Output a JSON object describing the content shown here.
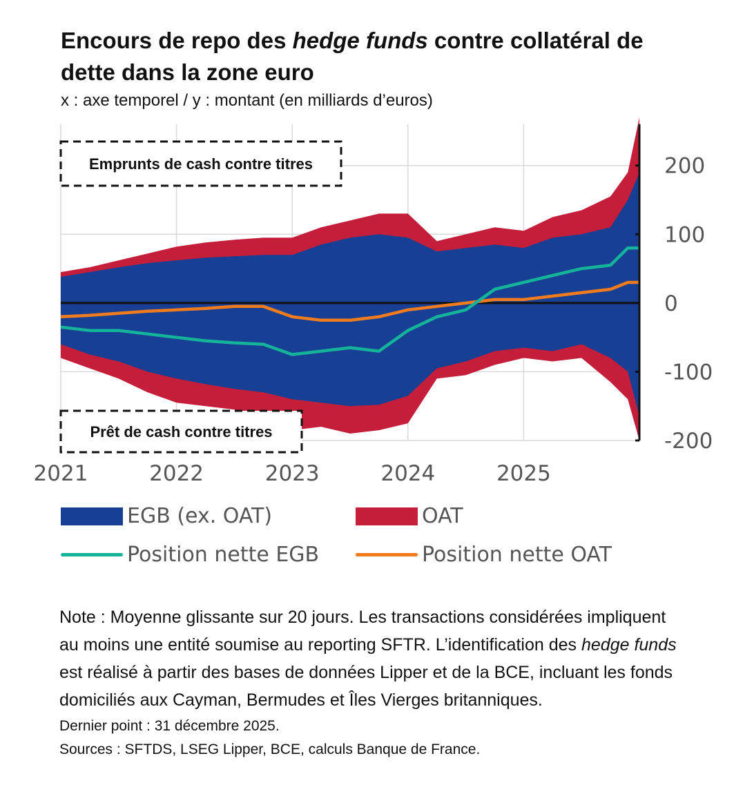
{
  "title": {
    "part1": "Encours de repo des ",
    "italic": "hedge funds",
    "part2": " contre collatéral de dette dans la zone euro"
  },
  "subtitle": "x : axe temporel / y : montant (en milliards d’euros)",
  "chart_data": {
    "type": "area",
    "x": [
      2021.0,
      2021.25,
      2021.5,
      2021.75,
      2022.0,
      2022.25,
      2022.5,
      2022.75,
      2023.0,
      2023.25,
      2023.5,
      2023.75,
      2024.0,
      2024.25,
      2024.5,
      2024.75,
      2025.0,
      2025.25,
      2025.5,
      2025.75,
      2025.9,
      2026.0
    ],
    "ylim": [
      -200,
      260
    ],
    "yticks": [
      -200,
      -100,
      0,
      100,
      200
    ],
    "ytick_labels": [
      "-200",
      "-100",
      "0",
      "100",
      "200"
    ],
    "xticks": [
      2021,
      2022,
      2023,
      2024,
      2025
    ],
    "xtick_labels": [
      "2021",
      "2022",
      "2023",
      "2024",
      "2025"
    ],
    "series": [
      {
        "name": "EGB (ex. OAT)",
        "kind": "area",
        "color": "#173f94",
        "upper": [
          38,
          45,
          52,
          58,
          62,
          66,
          68,
          70,
          70,
          85,
          95,
          100,
          95,
          75,
          80,
          85,
          80,
          95,
          100,
          110,
          150,
          190
        ],
        "lower": [
          -60,
          -75,
          -85,
          -100,
          -110,
          -118,
          -125,
          -130,
          -140,
          -145,
          -150,
          -148,
          -135,
          -95,
          -85,
          -70,
          -65,
          -70,
          -60,
          -80,
          -100,
          -165
        ]
      },
      {
        "name": "OAT",
        "kind": "area",
        "color": "#c41e3a",
        "upper": [
          45,
          52,
          62,
          72,
          82,
          88,
          92,
          95,
          95,
          110,
          120,
          130,
          130,
          90,
          100,
          110,
          105,
          125,
          135,
          155,
          190,
          270
        ],
        "lower": [
          -80,
          -95,
          -110,
          -130,
          -145,
          -150,
          -155,
          -165,
          -185,
          -180,
          -190,
          -185,
          -175,
          -110,
          -105,
          -90,
          -80,
          -85,
          -80,
          -115,
          -140,
          -200
        ]
      },
      {
        "name": "Position nette EGB",
        "kind": "line",
        "color": "#14b39a",
        "values": [
          -35,
          -40,
          -40,
          -45,
          -50,
          -55,
          -58,
          -60,
          -75,
          -70,
          -65,
          -70,
          -40,
          -20,
          -10,
          20,
          30,
          40,
          50,
          55,
          80,
          80
        ]
      },
      {
        "name": "Position nette OAT",
        "kind": "line",
        "color": "#f07c1e",
        "values": [
          -20,
          -18,
          -15,
          -12,
          -10,
          -8,
          -5,
          -5,
          -20,
          -25,
          -25,
          -20,
          -10,
          -5,
          0,
          5,
          5,
          10,
          15,
          20,
          30,
          30
        ]
      }
    ],
    "annotations": [
      "Emprunts de cash contre titres",
      "Prêt de cash contre titres"
    ],
    "grid": true,
    "legend_placement": "bottom"
  },
  "legend": {
    "egb": "EGB (ex. OAT)",
    "oat": "OAT",
    "net_egb": "Position nette EGB",
    "net_oat": "Position nette OAT"
  },
  "note": {
    "part1": "Note : Moyenne glissante sur 20 jours. Les transactions considérées impliquent au moins une entité soumise au reporting SFTR. L’identification des ",
    "italic": "hedge funds",
    "part2": " est réalisé à partir des bases de données Lipper et de la BCE, incluant les fonds domiciliés aux Cayman, Bermudes et Îles Vierges britanniques."
  },
  "last_point": "Dernier point : 31 décembre 2025.",
  "sources": "Sources : SFTDS, LSEG Lipper, BCE, calculs Banque de France.",
  "colors": {
    "egb": "#173f94",
    "oat": "#c41e3a",
    "net_egb": "#14b39a",
    "net_oat": "#f07c1e",
    "grid": "#d9d9d9",
    "axis": "#111111"
  }
}
